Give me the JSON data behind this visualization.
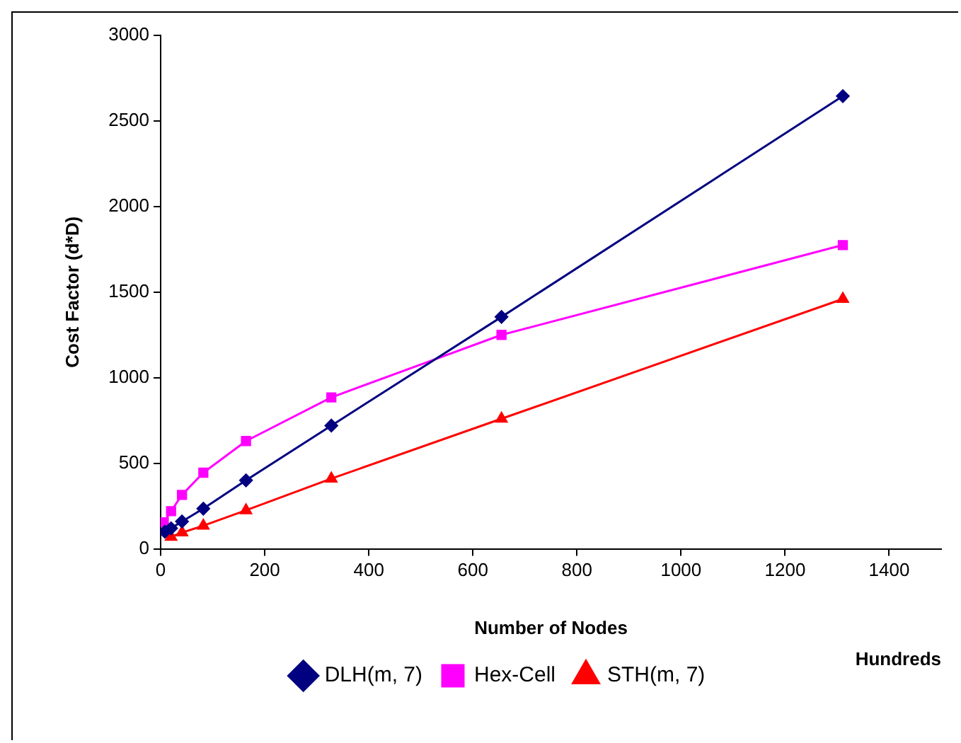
{
  "chart_data": {
    "type": "line",
    "xlabel": "Number of Nodes",
    "ylabel": "Cost Factor (d*D)",
    "annotations": [
      "Hundreds"
    ],
    "xlim": [
      0,
      1500
    ],
    "xticks": [
      0,
      200,
      400,
      600,
      800,
      1000,
      1200,
      1400
    ],
    "ylim": [
      0,
      3000
    ],
    "yticks": [
      0,
      500,
      1000,
      1500,
      2000,
      2500,
      3000
    ],
    "grid": false,
    "legend": "bottom",
    "series": [
      {
        "name": "DLH(m, 7)",
        "color": "#000080",
        "marker": "diamond",
        "x": [
          8,
          20,
          41,
          82,
          164,
          328,
          655,
          1311
        ],
        "values": [
          100,
          120,
          160,
          235,
          400,
          720,
          1355,
          2645
        ]
      },
      {
        "name": "Hex-Cell",
        "color": "#ff00ff",
        "marker": "square",
        "x": [
          6,
          20,
          41,
          82,
          164,
          328,
          655,
          1311
        ],
        "values": [
          155,
          220,
          315,
          445,
          630,
          885,
          1250,
          1775
        ]
      },
      {
        "name": "STH(m, 7)",
        "color": "#ff0000",
        "marker": "triangle",
        "x": [
          20,
          41,
          82,
          164,
          328,
          655,
          1311
        ],
        "values": [
          70,
          95,
          135,
          225,
          410,
          760,
          1460
        ]
      }
    ]
  }
}
